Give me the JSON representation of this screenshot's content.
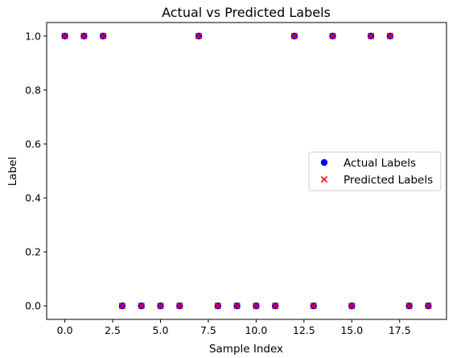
{
  "chart_data": {
    "type": "scatter",
    "title": "Actual vs Predicted Labels",
    "xlabel": "Sample Index",
    "ylabel": "Label",
    "xlim": [
      -0.95,
      19.95
    ],
    "ylim": [
      -0.05,
      1.05
    ],
    "grid": false,
    "legend_position": "center-right",
    "x_ticks": [
      {
        "value": 0,
        "label": "0.0"
      },
      {
        "value": 2.5,
        "label": "2.5"
      },
      {
        "value": 5,
        "label": "5.0"
      },
      {
        "value": 7.5,
        "label": "7.5"
      },
      {
        "value": 10,
        "label": "10.0"
      },
      {
        "value": 12.5,
        "label": "12.5"
      },
      {
        "value": 15,
        "label": "15.0"
      },
      {
        "value": 17.5,
        "label": "17.5"
      }
    ],
    "y_ticks": [
      {
        "value": 0,
        "label": "0.0"
      },
      {
        "value": 0.2,
        "label": "0.2"
      },
      {
        "value": 0.4,
        "label": "0.4"
      },
      {
        "value": 0.6,
        "label": "0.6"
      },
      {
        "value": 0.8,
        "label": "0.8"
      },
      {
        "value": 1,
        "label": "1.0"
      }
    ],
    "x": [
      0,
      1,
      2,
      3,
      4,
      5,
      6,
      7,
      8,
      9,
      10,
      11,
      12,
      13,
      14,
      15,
      16,
      17,
      18,
      19
    ],
    "series": [
      {
        "name": "Actual Labels",
        "marker": "circle",
        "color": "#0000ff",
        "values": [
          1,
          1,
          1,
          0,
          0,
          0,
          0,
          1,
          0,
          0,
          0,
          0,
          1,
          0,
          1,
          0,
          1,
          1,
          0,
          0
        ]
      },
      {
        "name": "Predicted Labels",
        "marker": "x",
        "color": "#ff0000",
        "values": [
          1,
          1,
          1,
          0,
          0,
          0,
          0,
          1,
          0,
          0,
          0,
          0,
          1,
          0,
          1,
          0,
          1,
          1,
          0,
          0
        ]
      }
    ]
  }
}
